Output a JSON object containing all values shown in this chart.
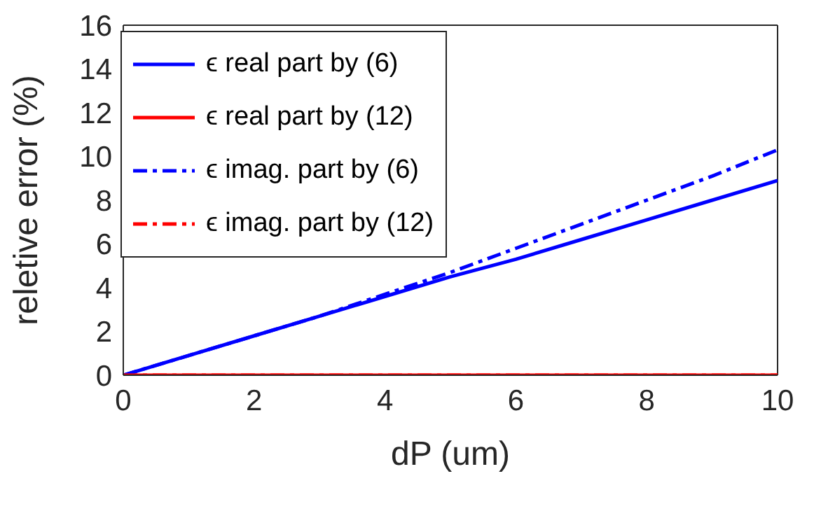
{
  "chart_data": {
    "type": "line",
    "xlabel": "dP (um)",
    "ylabel": "reletive error (%)",
    "x": [
      0,
      1,
      2,
      3,
      4,
      5,
      6,
      7,
      8,
      9,
      10
    ],
    "xlim": [
      0,
      10
    ],
    "xticks": [
      0,
      2,
      4,
      6,
      8,
      10
    ],
    "ylim": [
      0,
      16
    ],
    "yticks": [
      0,
      2,
      4,
      6,
      8,
      10,
      12,
      14,
      16
    ],
    "grid": false,
    "legend": "top left",
    "marker": "none",
    "series": [
      {
        "name": "ϵ real part by (6)",
        "color": "#0000ff",
        "line_style": "solid",
        "values": [
          0,
          0.9,
          1.8,
          2.7,
          3.6,
          4.5,
          5.3,
          6.2,
          7.1,
          8.0,
          8.9
        ]
      },
      {
        "name": "ϵ real part by (12)",
        "color": "#ff0000",
        "line_style": "solid",
        "values": [
          0,
          0,
          0,
          0,
          0,
          0,
          0,
          0,
          0,
          0,
          0
        ]
      },
      {
        "name": "ϵ imag. part by (6)",
        "color": "#0000ff",
        "line_style": "dashed",
        "values": [
          0,
          0.9,
          1.8,
          2.7,
          3.7,
          4.7,
          5.8,
          6.9,
          8.0,
          9.1,
          10.3
        ]
      },
      {
        "name": "ϵ imag. part by (12)",
        "color": "#ff0000",
        "line_style": "dashed",
        "values": [
          0,
          0,
          0,
          0,
          0,
          0,
          0,
          0,
          0,
          0,
          0
        ]
      }
    ]
  }
}
